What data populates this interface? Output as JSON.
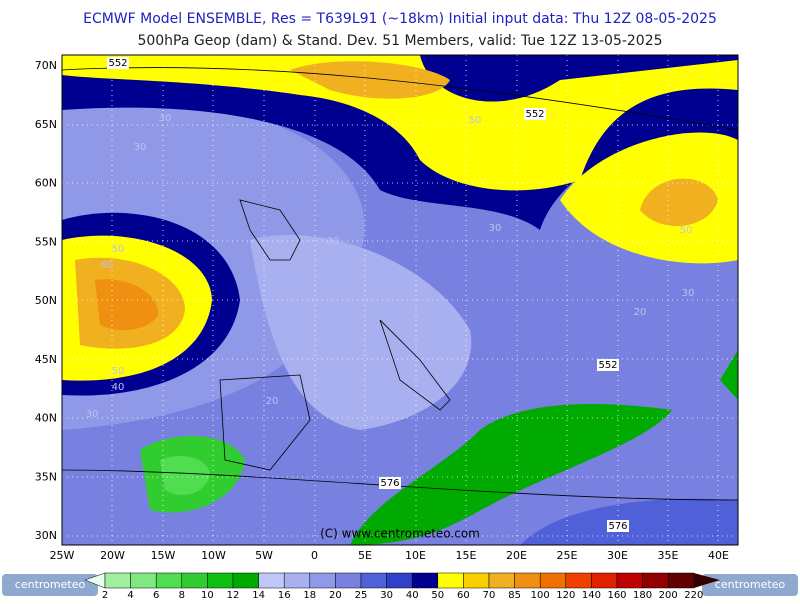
{
  "header": {
    "line1": "ECMWF Model ENSEMBLE, Res = T639L91 (~18km)  Initial input data: Thu 12Z 08-05-2025",
    "line2": "500hPa Geop (dam) & Stand. Dev.   51 Members, valid: Tue 12Z 13-05-2025"
  },
  "map": {
    "lat_labels": [
      "70N",
      "65N",
      "60N",
      "55N",
      "50N",
      "45N",
      "40N",
      "35N",
      "30N"
    ],
    "lon_labels": [
      "25W",
      "20W",
      "15W",
      "10W",
      "5W",
      "0",
      "5E",
      "10E",
      "15E",
      "20E",
      "25E",
      "30E",
      "35E",
      "40E"
    ],
    "contour_labels": [
      "552",
      "30",
      "30",
      "552",
      "50",
      "30",
      "30",
      "50",
      "60",
      "30",
      "50",
      "50",
      "40",
      "30",
      "20",
      "552",
      "576",
      "20",
      "576"
    ],
    "credit": "(C) www.centrometeo.com"
  },
  "colorbar": {
    "labels": [
      2,
      4,
      6,
      8,
      10,
      12,
      14,
      16,
      18,
      20,
      25,
      30,
      40,
      50,
      60,
      70,
      85,
      100,
      120,
      140,
      160,
      180,
      200,
      220
    ]
  },
  "footer": {
    "logo_left": "centrometeo",
    "logo_right": "centrometeo"
  }
}
